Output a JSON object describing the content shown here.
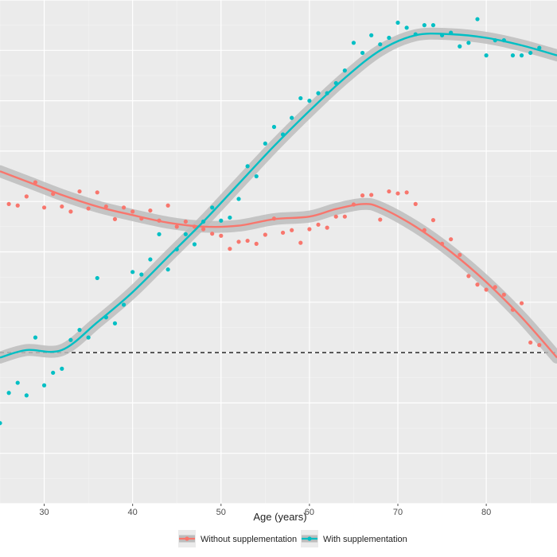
{
  "chart_data": {
    "type": "scatter",
    "xlabel": "Age (years)",
    "ylabel": "",
    "xlim": [
      25,
      88
    ],
    "x_ticks": [
      30,
      40,
      50,
      60,
      70,
      80
    ],
    "ylim": [
      0,
      100
    ],
    "reference_line": {
      "y": 30,
      "style": "dashed"
    },
    "grid": true,
    "legend_position": "bottom",
    "series": [
      {
        "name": "Without supplementation",
        "color": "#F8766D",
        "points": [
          [
            26,
            59.5
          ],
          [
            27,
            59.2
          ],
          [
            28,
            61
          ],
          [
            29,
            63.8
          ],
          [
            30,
            58.8
          ],
          [
            31,
            61.5
          ],
          [
            32,
            59
          ],
          [
            33,
            58
          ],
          [
            34,
            62
          ],
          [
            35,
            58.6
          ],
          [
            36,
            61.8
          ],
          [
            37,
            59
          ],
          [
            38,
            56.5
          ],
          [
            39,
            58.8
          ],
          [
            40,
            58
          ],
          [
            41,
            56.6
          ],
          [
            42,
            58.2
          ],
          [
            43,
            56.2
          ],
          [
            44,
            59.2
          ],
          [
            45,
            55
          ],
          [
            46,
            56
          ],
          [
            47,
            55
          ],
          [
            48,
            54.5
          ],
          [
            49,
            53.6
          ],
          [
            50,
            53.2
          ],
          [
            51,
            50.6
          ],
          [
            52,
            52
          ],
          [
            53,
            52.2
          ],
          [
            54,
            51.6
          ],
          [
            55,
            53.4
          ],
          [
            56,
            56.6
          ],
          [
            57,
            53.8
          ],
          [
            58,
            54.3
          ],
          [
            59,
            51.8
          ],
          [
            60,
            54.5
          ],
          [
            61,
            55.4
          ],
          [
            62,
            54.8
          ],
          [
            63,
            57
          ],
          [
            64,
            57
          ],
          [
            65,
            59.4
          ],
          [
            66,
            61.2
          ],
          [
            67,
            61.3
          ],
          [
            68,
            56.4
          ],
          [
            69,
            62
          ],
          [
            70,
            61.6
          ],
          [
            71,
            61.8
          ],
          [
            72,
            59.5
          ],
          [
            73,
            54.3
          ],
          [
            74,
            56.3
          ],
          [
            75,
            51.6
          ],
          [
            76,
            52.5
          ],
          [
            77,
            49.4
          ],
          [
            78,
            45.2
          ],
          [
            79,
            43.5
          ],
          [
            80,
            42.5
          ],
          [
            81,
            43
          ],
          [
            82,
            41.5
          ],
          [
            83,
            38.5
          ],
          [
            84,
            39.8
          ],
          [
            85,
            32
          ],
          [
            86,
            31.5
          ]
        ],
        "smooth": [
          [
            25,
            66
          ],
          [
            28,
            64
          ],
          [
            32,
            61.3
          ],
          [
            36,
            59
          ],
          [
            40,
            57.3
          ],
          [
            44,
            55.8
          ],
          [
            48,
            55
          ],
          [
            52,
            55.2
          ],
          [
            56,
            56.5
          ],
          [
            60,
            57
          ],
          [
            63,
            58.5
          ],
          [
            66,
            59.5
          ],
          [
            68,
            58.8
          ],
          [
            72,
            55
          ],
          [
            76,
            50
          ],
          [
            80,
            44
          ],
          [
            84,
            37
          ],
          [
            88,
            29
          ]
        ]
      },
      {
        "name": "With supplementation",
        "color": "#00BFC4",
        "points": [
          [
            25,
            16
          ],
          [
            26,
            22
          ],
          [
            27,
            24
          ],
          [
            28,
            21.5
          ],
          [
            29,
            33
          ],
          [
            30,
            23.5
          ],
          [
            31,
            26
          ],
          [
            32,
            26.8
          ],
          [
            33,
            32.5
          ],
          [
            34,
            34.5
          ],
          [
            35,
            33
          ],
          [
            36,
            44.8
          ],
          [
            37,
            37
          ],
          [
            38,
            35.8
          ],
          [
            39,
            39.5
          ],
          [
            40,
            46
          ],
          [
            41,
            45.5
          ],
          [
            42,
            48.5
          ],
          [
            43,
            53.5
          ],
          [
            44,
            46.5
          ],
          [
            45,
            50.5
          ],
          [
            46,
            53.5
          ],
          [
            47,
            51.5
          ],
          [
            48,
            56
          ],
          [
            49,
            58.8
          ],
          [
            50,
            56.2
          ],
          [
            51,
            56.8
          ],
          [
            52,
            60.5
          ],
          [
            53,
            67
          ],
          [
            54,
            65
          ],
          [
            55,
            71.5
          ],
          [
            56,
            74.8
          ],
          [
            57,
            73.3
          ],
          [
            58,
            76.6
          ],
          [
            59,
            80.5
          ],
          [
            60,
            80
          ],
          [
            61,
            81.5
          ],
          [
            62,
            81.5
          ],
          [
            63,
            83.5
          ],
          [
            64,
            86
          ],
          [
            65,
            91.5
          ],
          [
            66,
            89.5
          ],
          [
            67,
            93
          ],
          [
            68,
            91.2
          ],
          [
            69,
            92.5
          ],
          [
            70,
            95.5
          ],
          [
            71,
            94.5
          ],
          [
            72,
            93.2
          ],
          [
            73,
            95
          ],
          [
            74,
            95
          ],
          [
            75,
            93
          ],
          [
            76,
            93.5
          ],
          [
            77,
            90.8
          ],
          [
            78,
            91.5
          ],
          [
            79,
            96.2
          ],
          [
            80,
            89
          ],
          [
            81,
            92
          ],
          [
            82,
            92
          ],
          [
            83,
            89
          ],
          [
            84,
            89
          ],
          [
            85,
            89.5
          ],
          [
            86,
            90.5
          ]
        ],
        "smooth": [
          [
            25,
            29
          ],
          [
            28,
            30.5
          ],
          [
            32,
            30.5
          ],
          [
            36,
            36
          ],
          [
            40,
            42
          ],
          [
            44,
            49
          ],
          [
            48,
            56
          ],
          [
            52,
            63.5
          ],
          [
            56,
            71
          ],
          [
            60,
            78
          ],
          [
            64,
            84.5
          ],
          [
            68,
            90
          ],
          [
            72,
            93
          ],
          [
            76,
            93.2
          ],
          [
            80,
            92.5
          ],
          [
            84,
            91
          ],
          [
            88,
            89
          ]
        ]
      }
    ]
  }
}
